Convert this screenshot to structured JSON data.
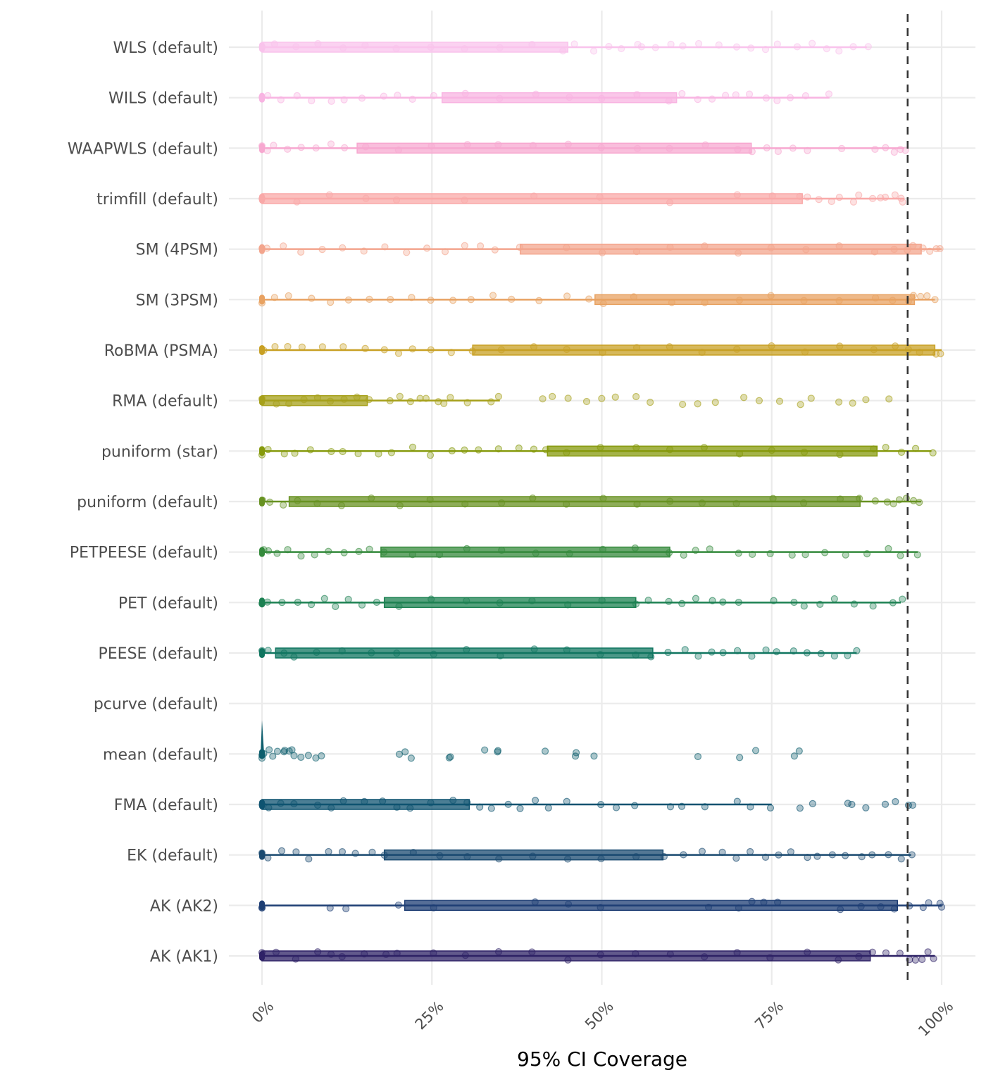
{
  "chart_data": {
    "type": "boxplot-jitter",
    "title": "",
    "xlabel": "95% CI Coverage",
    "ylabel": "",
    "xlim": [
      0,
      1
    ],
    "x_ticks": [
      0,
      0.25,
      0.5,
      0.75,
      1.0
    ],
    "x_tick_labels": [
      "0%",
      "25%",
      "50%",
      "75%",
      "100%"
    ],
    "grid": true,
    "reference_line": {
      "x": 0.95,
      "style": "dashed",
      "color": "#333333"
    },
    "legend": "none",
    "categories": [
      "WLS (default)",
      "WILS (default)",
      "WAAPWLS (default)",
      "trimfill (default)",
      "SM (4PSM)",
      "SM (3PSM)",
      "RoBMA (PSMA)",
      "RMA (default)",
      "puniform (star)",
      "puniform (default)",
      "PETPEESE (default)",
      "PET (default)",
      "PEESE (default)",
      "pcurve (default)",
      "mean (default)",
      "FMA (default)",
      "EK (default)",
      "AK (AK2)",
      "AK (AK1)"
    ],
    "series": [
      {
        "name": "WLS (default)",
        "color": "#F9C3EC",
        "min": 0.0,
        "q1": 0.0,
        "q3": 0.45,
        "max": 0.89,
        "points": [
          0.0,
          0.02,
          0.05,
          0.08,
          0.12,
          0.15,
          0.2,
          0.25,
          0.3,
          0.35,
          0.4,
          0.44,
          0.46,
          0.49,
          0.51,
          0.53,
          0.55,
          0.56,
          0.58,
          0.6,
          0.62,
          0.64,
          0.67,
          0.7,
          0.72,
          0.74,
          0.76,
          0.79,
          0.81,
          0.83,
          0.85,
          0.87,
          0.89
        ]
      },
      {
        "name": "WILS (default)",
        "color": "#F8B4E2",
        "min": 0.0,
        "q1": 0.265,
        "q3": 0.61,
        "max": 0.835,
        "points": [
          0.0,
          0.01,
          0.03,
          0.05,
          0.07,
          0.1,
          0.12,
          0.15,
          0.18,
          0.2,
          0.22,
          0.25,
          0.3,
          0.35,
          0.4,
          0.45,
          0.5,
          0.55,
          0.6,
          0.62,
          0.64,
          0.66,
          0.68,
          0.7,
          0.72,
          0.74,
          0.76,
          0.78,
          0.8,
          0.835
        ]
      },
      {
        "name": "WAAPWLS (default)",
        "color": "#F7A8D0",
        "min": 0.0,
        "q1": 0.14,
        "q3": 0.72,
        "max": 0.945,
        "points": [
          0.0,
          0.01,
          0.02,
          0.04,
          0.06,
          0.08,
          0.1,
          0.12,
          0.15,
          0.2,
          0.25,
          0.3,
          0.35,
          0.4,
          0.45,
          0.5,
          0.55,
          0.6,
          0.65,
          0.7,
          0.72,
          0.74,
          0.76,
          0.78,
          0.8,
          0.85,
          0.9,
          0.92,
          0.93,
          0.94,
          0.945
        ]
      },
      {
        "name": "trimfill (default)",
        "color": "#F9A9A8",
        "min": 0.0,
        "q1": 0.0,
        "q3": 0.795,
        "max": 0.945,
        "points": [
          0.0,
          0.05,
          0.1,
          0.15,
          0.2,
          0.3,
          0.4,
          0.5,
          0.6,
          0.7,
          0.75,
          0.79,
          0.8,
          0.82,
          0.84,
          0.85,
          0.87,
          0.88,
          0.9,
          0.91,
          0.92,
          0.93,
          0.94,
          0.945
        ]
      },
      {
        "name": "SM (4PSM)",
        "color": "#F3A58D",
        "min": 0.0,
        "q1": 0.38,
        "q3": 0.97,
        "max": 1.0,
        "points": [
          0.0,
          0.01,
          0.03,
          0.06,
          0.09,
          0.12,
          0.15,
          0.18,
          0.21,
          0.24,
          0.27,
          0.3,
          0.32,
          0.34,
          0.38,
          0.45,
          0.5,
          0.55,
          0.6,
          0.65,
          0.7,
          0.75,
          0.8,
          0.85,
          0.9,
          0.93,
          0.95,
          0.96,
          0.97,
          0.98,
          0.99,
          1.0
        ]
      },
      {
        "name": "SM (3PSM)",
        "color": "#E8A262",
        "min": 0.0,
        "q1": 0.49,
        "q3": 0.96,
        "max": 0.99,
        "points": [
          0.0,
          0.02,
          0.04,
          0.07,
          0.1,
          0.13,
          0.16,
          0.19,
          0.22,
          0.25,
          0.28,
          0.31,
          0.34,
          0.37,
          0.41,
          0.45,
          0.48,
          0.5,
          0.55,
          0.6,
          0.65,
          0.7,
          0.75,
          0.8,
          0.85,
          0.9,
          0.93,
          0.95,
          0.96,
          0.97,
          0.98,
          0.99
        ]
      },
      {
        "name": "RoBMA (PSMA)",
        "color": "#C8A024",
        "min": 0.0,
        "q1": 0.31,
        "q3": 0.99,
        "max": 1.0,
        "points": [
          0.0,
          0.02,
          0.04,
          0.06,
          0.09,
          0.12,
          0.15,
          0.18,
          0.2,
          0.22,
          0.25,
          0.28,
          0.31,
          0.35,
          0.4,
          0.45,
          0.5,
          0.55,
          0.6,
          0.65,
          0.7,
          0.75,
          0.8,
          0.85,
          0.9,
          0.93,
          0.95,
          0.97,
          0.99,
          1.0
        ]
      },
      {
        "name": "RMA (default)",
        "color": "#A6A01A",
        "min": 0.0,
        "q1": 0.0,
        "q3": 0.155,
        "max": 0.35,
        "points": [
          0.0,
          0.02,
          0.04,
          0.06,
          0.08,
          0.1,
          0.12,
          0.14,
          0.16,
          0.19,
          0.2,
          0.22,
          0.23,
          0.24,
          0.26,
          0.27,
          0.28,
          0.3,
          0.34,
          0.35,
          0.41,
          0.43,
          0.45,
          0.48,
          0.5,
          0.52,
          0.55,
          0.57,
          0.62,
          0.64,
          0.67,
          0.71,
          0.73,
          0.76,
          0.79,
          0.81,
          0.85,
          0.87,
          0.89,
          0.92
        ]
      },
      {
        "name": "puniform (star)",
        "color": "#869A0C",
        "min": 0.0,
        "q1": 0.42,
        "q3": 0.905,
        "max": 0.985,
        "points": [
          0.0,
          0.01,
          0.03,
          0.05,
          0.07,
          0.1,
          0.12,
          0.14,
          0.17,
          0.19,
          0.22,
          0.25,
          0.28,
          0.3,
          0.32,
          0.35,
          0.38,
          0.4,
          0.42,
          0.45,
          0.5,
          0.55,
          0.6,
          0.65,
          0.7,
          0.75,
          0.8,
          0.85,
          0.9,
          0.92,
          0.94,
          0.96,
          0.985
        ]
      },
      {
        "name": "puniform (default)",
        "color": "#689222",
        "min": 0.0,
        "q1": 0.04,
        "q3": 0.88,
        "max": 0.97,
        "points": [
          0.0,
          0.01,
          0.03,
          0.05,
          0.08,
          0.12,
          0.16,
          0.2,
          0.25,
          0.3,
          0.35,
          0.4,
          0.45,
          0.5,
          0.55,
          0.6,
          0.65,
          0.7,
          0.75,
          0.8,
          0.85,
          0.88,
          0.9,
          0.92,
          0.93,
          0.94,
          0.95,
          0.96,
          0.97
        ]
      },
      {
        "name": "PETPEESE (default)",
        "color": "#358A3C",
        "min": 0.0,
        "q1": 0.175,
        "q3": 0.6,
        "max": 0.965,
        "points": [
          0.0,
          0.01,
          0.02,
          0.04,
          0.06,
          0.08,
          0.1,
          0.12,
          0.14,
          0.16,
          0.18,
          0.22,
          0.26,
          0.3,
          0.35,
          0.4,
          0.45,
          0.5,
          0.55,
          0.6,
          0.62,
          0.64,
          0.66,
          0.7,
          0.72,
          0.75,
          0.78,
          0.8,
          0.83,
          0.86,
          0.89,
          0.92,
          0.94,
          0.965
        ]
      },
      {
        "name": "PET (default)",
        "color": "#1C8152",
        "min": 0.0,
        "q1": 0.18,
        "q3": 0.55,
        "max": 0.94,
        "points": [
          0.0,
          0.01,
          0.03,
          0.05,
          0.07,
          0.09,
          0.11,
          0.13,
          0.15,
          0.17,
          0.2,
          0.25,
          0.3,
          0.35,
          0.4,
          0.45,
          0.5,
          0.55,
          0.57,
          0.6,
          0.62,
          0.64,
          0.66,
          0.68,
          0.7,
          0.75,
          0.78,
          0.8,
          0.82,
          0.84,
          0.87,
          0.9,
          0.93,
          0.94
        ]
      },
      {
        "name": "PEESE (default)",
        "color": "#107660",
        "min": 0.0,
        "q1": 0.02,
        "q3": 0.575,
        "max": 0.875,
        "points": [
          0.0,
          0.01,
          0.03,
          0.05,
          0.08,
          0.12,
          0.16,
          0.2,
          0.25,
          0.3,
          0.35,
          0.4,
          0.45,
          0.5,
          0.55,
          0.57,
          0.6,
          0.62,
          0.64,
          0.66,
          0.68,
          0.7,
          0.72,
          0.74,
          0.76,
          0.78,
          0.8,
          0.82,
          0.84,
          0.86,
          0.875
        ]
      },
      {
        "name": "pcurve (default)",
        "color": "#0E6A6A",
        "min": null,
        "q1": null,
        "q3": null,
        "max": null,
        "points": []
      },
      {
        "name": "mean (default)",
        "color": "#0F5F6E",
        "min": 0.0,
        "q1": 0.0,
        "q3": 0.0,
        "max": 0.0,
        "points": [
          0.0,
          0.0,
          0.0,
          0.01,
          0.015,
          0.02,
          0.03,
          0.035,
          0.04,
          0.045,
          0.05,
          0.06,
          0.07,
          0.08,
          0.085,
          0.2,
          0.21,
          0.22,
          0.275,
          0.28,
          0.325,
          0.345,
          0.35,
          0.415,
          0.46,
          0.46,
          0.49,
          0.64,
          0.7,
          0.725,
          0.785,
          0.79
        ]
      },
      {
        "name": "FMA (default)",
        "color": "#0F5370",
        "min": 0.0,
        "q1": 0.0,
        "q3": 0.305,
        "max": 0.75,
        "points": [
          0.0,
          0.01,
          0.03,
          0.05,
          0.08,
          0.1,
          0.12,
          0.15,
          0.18,
          0.2,
          0.22,
          0.25,
          0.28,
          0.3,
          0.32,
          0.34,
          0.36,
          0.38,
          0.4,
          0.42,
          0.45,
          0.5,
          0.52,
          0.55,
          0.6,
          0.62,
          0.65,
          0.7,
          0.72,
          0.75,
          0.79,
          0.81,
          0.86,
          0.87,
          0.89,
          0.92,
          0.93,
          0.95,
          0.96
        ]
      },
      {
        "name": "EK (default)",
        "color": "#1A4A70",
        "min": 0.0,
        "q1": 0.18,
        "q3": 0.59,
        "max": 0.955,
        "points": [
          0.0,
          0.01,
          0.03,
          0.05,
          0.07,
          0.1,
          0.12,
          0.14,
          0.16,
          0.18,
          0.22,
          0.26,
          0.3,
          0.35,
          0.4,
          0.45,
          0.5,
          0.55,
          0.59,
          0.62,
          0.65,
          0.68,
          0.7,
          0.72,
          0.74,
          0.76,
          0.78,
          0.8,
          0.82,
          0.84,
          0.86,
          0.88,
          0.9,
          0.92,
          0.94,
          0.955
        ]
      },
      {
        "name": "AK (AK2)",
        "color": "#1E3E74",
        "min": 0.0,
        "q1": 0.21,
        "q3": 0.935,
        "max": 1.0,
        "points": [
          0.0,
          0.0,
          0.1,
          0.125,
          0.2,
          0.25,
          0.4,
          0.45,
          0.5,
          0.66,
          0.7,
          0.72,
          0.74,
          0.76,
          0.85,
          0.88,
          0.91,
          0.93,
          0.95,
          0.97,
          0.98,
          1.0,
          1.0
        ]
      },
      {
        "name": "AK (AK1)",
        "color": "#2E2266",
        "min": 0.0,
        "q1": 0.0,
        "q3": 0.895,
        "max": 0.99,
        "points": [
          0.0,
          0.02,
          0.05,
          0.08,
          0.1,
          0.12,
          0.15,
          0.18,
          0.2,
          0.25,
          0.3,
          0.35,
          0.4,
          0.45,
          0.5,
          0.55,
          0.6,
          0.65,
          0.7,
          0.75,
          0.8,
          0.85,
          0.88,
          0.9,
          0.92,
          0.94,
          0.95,
          0.96,
          0.97,
          0.98,
          0.99
        ]
      }
    ]
  }
}
